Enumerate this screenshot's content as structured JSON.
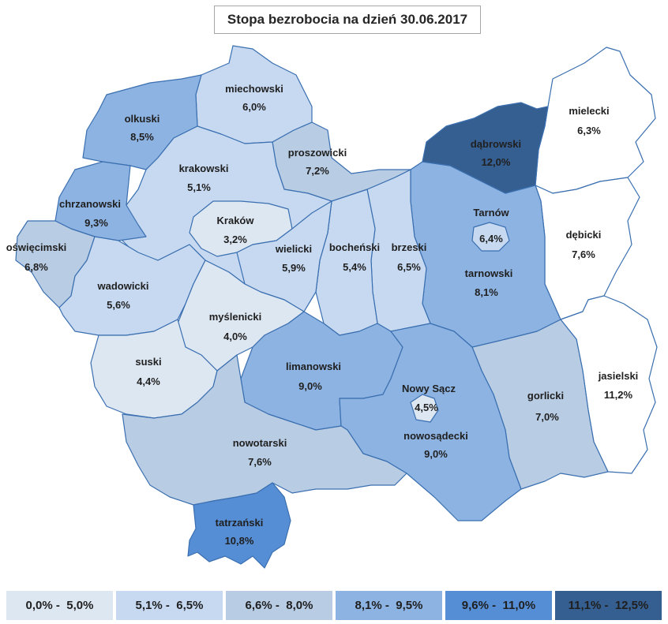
{
  "title": "Stopa bezrobocia na dzień 30.06.2017",
  "colors": {
    "c1": "#dde7f2",
    "c2": "#c6d9f1",
    "c3": "#b8cce4",
    "c4": "#8db3e2",
    "c5": "#558ed5",
    "c6": "#365f91",
    "outline": "#3a6fb0"
  },
  "legend": [
    {
      "label": "0,0% -  5,0%",
      "color": "#dde7f2"
    },
    {
      "label": "5,1% -  6,5%",
      "color": "#c6d9f1"
    },
    {
      "label": "6,6% -  8,0%",
      "color": "#b8cce4"
    },
    {
      "label": "8,1% -  9,5%",
      "color": "#8db3e2"
    },
    {
      "label": "9,6% -  11,0%",
      "color": "#558ed5"
    },
    {
      "label": "11,1% -  12,5%",
      "color": "#365f91"
    }
  ],
  "regions": [
    {
      "name": "miechowski",
      "value": "6,0%",
      "color": "#c6d9f1"
    },
    {
      "name": "olkuski",
      "value": "8,5%",
      "color": "#8db3e2"
    },
    {
      "name": "proszowicki",
      "value": "7,2%",
      "color": "#b8cce4"
    },
    {
      "name": "dąbrowski",
      "value": "12,0%",
      "color": "#365f91"
    },
    {
      "name": "mielecki",
      "value": "6,3%",
      "color": "#ffffff"
    },
    {
      "name": "krakowski",
      "value": "5,1%",
      "color": "#c6d9f1"
    },
    {
      "name": "chrzanowski",
      "value": "9,3%",
      "color": "#8db3e2"
    },
    {
      "name": "Kraków",
      "value": "3,2%",
      "color": "#dde7f2"
    },
    {
      "name": "oświęcimski",
      "value": "6,8%",
      "color": "#b8cce4"
    },
    {
      "name": "wielicki",
      "value": "5,9%",
      "color": "#c6d9f1"
    },
    {
      "name": "bocheński",
      "value": "5,4%",
      "color": "#c6d9f1"
    },
    {
      "name": "brzeski",
      "value": "6,5%",
      "color": "#c6d9f1"
    },
    {
      "name": "Tarnów",
      "value": "6,4%",
      "color": "#c6d9f1"
    },
    {
      "name": "tarnowski",
      "value": "8,1%",
      "color": "#8db3e2"
    },
    {
      "name": "dębicki",
      "value": "7,6%",
      "color": "#ffffff"
    },
    {
      "name": "wadowicki",
      "value": "5,6%",
      "color": "#c6d9f1"
    },
    {
      "name": "myślenicki",
      "value": "4,0%",
      "color": "#dde7f2"
    },
    {
      "name": "suski",
      "value": "4,4%",
      "color": "#dde7f2"
    },
    {
      "name": "limanowski",
      "value": "9,0%",
      "color": "#8db3e2"
    },
    {
      "name": "Nowy Sącz",
      "value": "4,5%",
      "color": "#dde7f2"
    },
    {
      "name": "gorlicki",
      "value": "7,0%",
      "color": "#b8cce4"
    },
    {
      "name": "jasielski",
      "value": "11,2%",
      "color": "#ffffff"
    },
    {
      "name": "nowosądecki",
      "value": "9,0%",
      "color": "#8db3e2"
    },
    {
      "name": "nowotarski",
      "value": "7,6%",
      "color": "#b8cce4"
    },
    {
      "name": "tatrzański",
      "value": "10,8%",
      "color": "#558ed5"
    }
  ]
}
